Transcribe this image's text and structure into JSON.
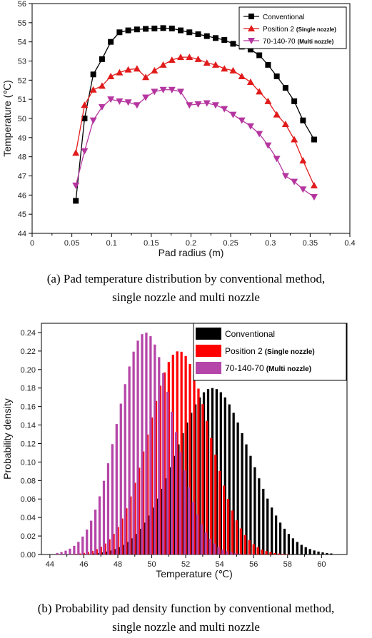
{
  "chart_data": [
    {
      "type": "line",
      "xlabel": "Pad radius (m)",
      "ylabel": "Temperature (℃)",
      "xlim": [
        0,
        0.4
      ],
      "ylim": [
        44,
        56
      ],
      "xticks": [
        "0",
        "0.05",
        "0.1",
        "0.15",
        "0.2",
        "0.25",
        "0.3",
        "0.35",
        "0.4"
      ],
      "yticks": [
        "44",
        "45",
        "46",
        "47",
        "48",
        "49",
        "50",
        "51",
        "52",
        "53",
        "54",
        "55",
        "56"
      ],
      "legend_position": "top-right",
      "grid": false,
      "series": [
        {
          "name": "Conventional",
          "color": "#000000",
          "marker": "square",
          "x": [
            0.055,
            0.066,
            0.077,
            0.088,
            0.099,
            0.11,
            0.121,
            0.132,
            0.143,
            0.154,
            0.165,
            0.176,
            0.187,
            0.198,
            0.209,
            0.22,
            0.231,
            0.242,
            0.253,
            0.264,
            0.275,
            0.286,
            0.297,
            0.308,
            0.319,
            0.33,
            0.341,
            0.355
          ],
          "y": [
            45.7,
            50.0,
            52.3,
            53.1,
            54.0,
            54.5,
            54.6,
            54.65,
            54.68,
            54.7,
            54.72,
            54.7,
            54.6,
            54.5,
            54.4,
            54.3,
            54.2,
            54.1,
            53.9,
            53.75,
            53.6,
            53.3,
            52.8,
            52.2,
            51.6,
            50.9,
            49.9,
            48.9
          ]
        },
        {
          "name": "Position 2",
          "name_note": "(Single nozzle)",
          "color": "#e11b1b",
          "marker": "triangle-up",
          "x": [
            0.055,
            0.066,
            0.077,
            0.088,
            0.099,
            0.11,
            0.121,
            0.132,
            0.143,
            0.154,
            0.165,
            0.176,
            0.187,
            0.198,
            0.209,
            0.22,
            0.231,
            0.242,
            0.253,
            0.264,
            0.275,
            0.286,
            0.297,
            0.308,
            0.319,
            0.33,
            0.341,
            0.355
          ],
          "y": [
            48.2,
            50.7,
            51.5,
            51.7,
            52.2,
            52.4,
            52.55,
            52.6,
            52.15,
            52.5,
            52.8,
            53.05,
            53.2,
            53.2,
            53.1,
            52.9,
            52.8,
            52.6,
            52.5,
            52.2,
            51.9,
            51.4,
            50.9,
            50.2,
            49.7,
            48.9,
            47.8,
            46.5
          ]
        },
        {
          "name": "70-140-70",
          "name_note": "(Multi nozzle)",
          "color": "#b5359f",
          "marker": "triangle-down",
          "x": [
            0.055,
            0.066,
            0.077,
            0.088,
            0.099,
            0.11,
            0.121,
            0.132,
            0.143,
            0.154,
            0.165,
            0.176,
            0.187,
            0.198,
            0.209,
            0.22,
            0.231,
            0.242,
            0.253,
            0.264,
            0.275,
            0.286,
            0.297,
            0.308,
            0.319,
            0.33,
            0.341,
            0.355
          ],
          "y": [
            46.5,
            48.3,
            49.9,
            50.6,
            51.0,
            50.9,
            50.85,
            50.7,
            51.1,
            51.4,
            51.5,
            51.5,
            51.4,
            50.7,
            50.75,
            50.8,
            50.7,
            50.5,
            50.2,
            49.9,
            49.6,
            49.2,
            48.6,
            47.9,
            47.0,
            46.7,
            46.3,
            45.9
          ]
        }
      ]
    },
    {
      "type": "bar",
      "xlabel": "Temperature (℃)",
      "ylabel": "Probability density",
      "xlim": [
        43.5,
        61.5
      ],
      "ylim": [
        0,
        0.25
      ],
      "xticks": [
        "44",
        "46",
        "48",
        "50",
        "52",
        "54",
        "56",
        "58",
        "60"
      ],
      "yticks": [
        "0.00",
        "0.02",
        "0.04",
        "0.06",
        "0.08",
        "0.10",
        "0.12",
        "0.14",
        "0.16",
        "0.18",
        "0.20",
        "0.22",
        "0.24"
      ],
      "legend_position": "top-right",
      "grid": false,
      "bin_width": 0.25,
      "series": [
        {
          "name": "Conventional",
          "color": "#000000",
          "center": 53.5,
          "sigma": 2.2,
          "peak": 0.18,
          "x_start": 46.5,
          "x_end": 60.5,
          "offset": 0.07
        },
        {
          "name": "Position 2",
          "name_note": "(Single nozzle)",
          "color": "#ff0000",
          "center": 51.6,
          "sigma": 1.8,
          "peak": 0.22,
          "x_start": 45.5,
          "x_end": 58.0,
          "offset": 0.0
        },
        {
          "name": "70-140-70",
          "name_note": "(Multi nozzle)",
          "color": "#b545a8",
          "center": 49.7,
          "sigma": 1.65,
          "peak": 0.24,
          "x_start": 44.5,
          "x_end": 56.0,
          "offset": -0.07
        }
      ]
    }
  ],
  "captions": {
    "a_line1": "(a) Pad temperature distribution by conventional method,",
    "a_line2": "single nozzle and multi nozzle",
    "b_line1": "(b) Probability pad density function by conventional method,",
    "b_line2": "single nozzle and multi nozzle"
  }
}
